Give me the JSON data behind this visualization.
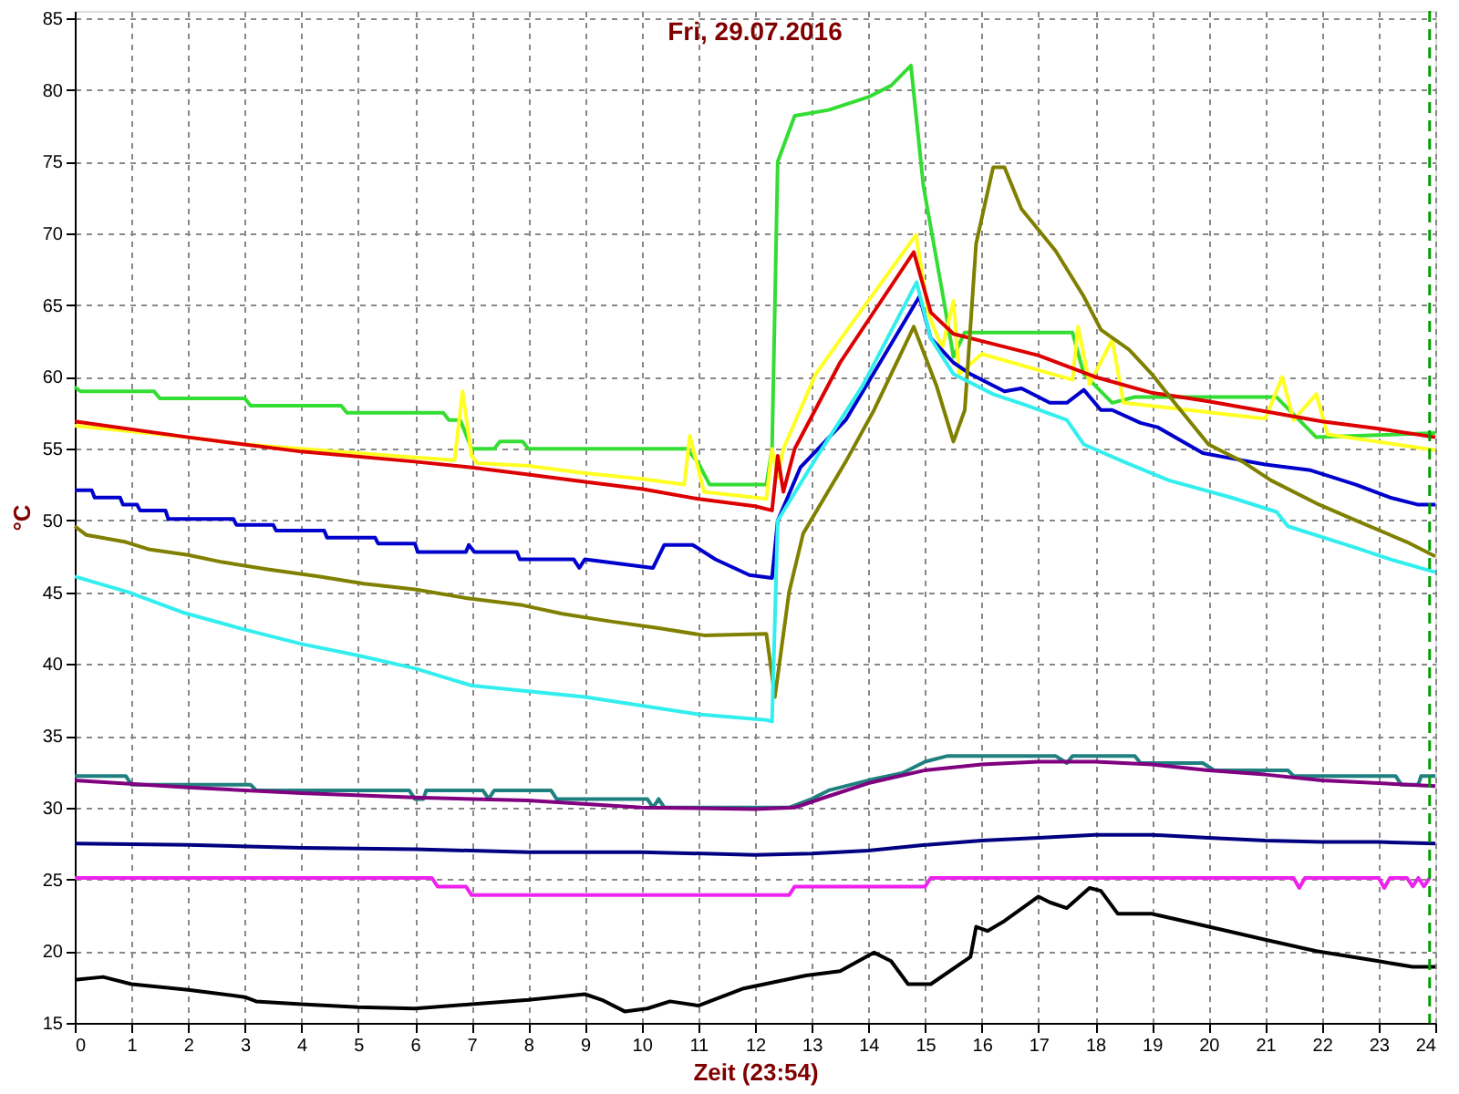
{
  "chart_data": {
    "type": "line",
    "title": "Fri, 29.07.2016",
    "xlabel": "Zeit (23:54)",
    "ylabel": "°C",
    "xlim": [
      0,
      24
    ],
    "xticks": [
      0,
      1,
      2,
      3,
      4,
      5,
      6,
      7,
      8,
      9,
      10,
      11,
      12,
      13,
      14,
      15,
      16,
      17,
      18,
      19,
      20,
      21,
      22,
      23,
      24
    ],
    "ylim": [
      15,
      85.5
    ],
    "yticks": [
      15,
      20,
      25,
      30,
      35,
      40,
      45,
      50,
      55,
      60,
      65,
      70,
      75,
      80,
      85
    ],
    "grid": true,
    "marker": "none",
    "line_style": "solid",
    "ref_lines": [
      {
        "axis": "x",
        "value": 23.9,
        "color": "#00a000",
        "line_style": "dashed"
      }
    ],
    "series": [
      {
        "color": "#33dd33",
        "x": [
          0,
          0.1,
          1.4,
          1.5,
          3,
          3.1,
          4.7,
          4.8,
          6.5,
          6.6,
          6.8,
          7,
          7.4,
          7.5,
          7.9,
          8,
          10.8,
          11,
          11.2,
          12.2,
          12.3,
          12.4,
          12.7,
          13.3,
          14,
          14.4,
          14.75,
          14.97,
          15.3,
          15.5,
          15.7,
          16,
          17.6,
          17.8,
          18.3,
          18.7,
          21.2,
          21.9,
          24
        ],
        "values": [
          59.3,
          59,
          59,
          58.5,
          58.5,
          58,
          58,
          57.5,
          57.5,
          57,
          57,
          55,
          55,
          55.5,
          55.5,
          55,
          55,
          54,
          52.5,
          52.5,
          55,
          75,
          78.2,
          78.6,
          79.5,
          80.3,
          81.7,
          73.3,
          66,
          61.4,
          63.1,
          63.1,
          63.1,
          60.2,
          58.2,
          58.6,
          58.6,
          55.8,
          56.1
        ]
      },
      {
        "color": "#ffff22",
        "x": [
          0,
          1,
          2,
          3,
          4,
          5,
          6,
          6.7,
          6.84,
          7,
          7.1,
          8,
          9,
          10,
          10.75,
          10.85,
          11.1,
          12,
          12.2,
          12.3,
          12.4,
          12.5,
          13.07,
          13.5,
          14.84,
          15.06,
          15.3,
          15.5,
          15.6,
          16,
          17.6,
          17.7,
          17.9,
          18.3,
          18.5,
          21,
          21.3,
          21.5,
          21.9,
          22.1,
          24
        ],
        "values": [
          56.6,
          56.2,
          55.8,
          55.3,
          55,
          54.7,
          54.4,
          54.2,
          59,
          54.5,
          54,
          53.8,
          53.3,
          52.9,
          52.5,
          55.9,
          52,
          51.6,
          51.5,
          55,
          53,
          55,
          60.2,
          62.6,
          69.9,
          64.4,
          62,
          65.3,
          60.2,
          61.6,
          59.8,
          63.5,
          59.5,
          62.6,
          58.2,
          57.1,
          60,
          57,
          58.8,
          56,
          54.9
        ]
      },
      {
        "color": "#dd0000",
        "x": [
          0,
          2,
          4,
          6,
          7,
          8,
          9,
          10,
          11,
          12,
          12.3,
          12.4,
          12.5,
          12.7,
          13.5,
          14.8,
          15.1,
          15.5,
          16,
          17,
          18,
          19,
          20,
          21,
          22,
          23,
          24
        ],
        "values": [
          56.9,
          55.8,
          54.8,
          54.1,
          53.7,
          53.2,
          52.7,
          52.2,
          51.5,
          51,
          50.7,
          54.5,
          52,
          55,
          61,
          68.7,
          64.5,
          63,
          62.5,
          61.5,
          60,
          58.9,
          58.3,
          57.6,
          56.9,
          56.4,
          55.8
        ]
      },
      {
        "color": "#0000cc",
        "x": [
          0,
          0.3,
          0.35,
          0.8,
          0.85,
          1.1,
          1.15,
          1.6,
          1.65,
          2.8,
          2.85,
          3.5,
          3.55,
          4.4,
          4.45,
          5.3,
          5.35,
          6,
          6.05,
          6.9,
          6.95,
          7.05,
          7.8,
          7.85,
          8.8,
          8.9,
          9,
          10.2,
          10.4,
          10.9,
          11.3,
          11.9,
          12.3,
          12.4,
          12.8,
          13.6,
          14.9,
          15.1,
          15.5,
          15.8,
          16.4,
          16.7,
          17.2,
          17.5,
          17.8,
          18.1,
          18.3,
          18.8,
          19.1,
          19.9,
          20.3,
          21,
          21.8,
          22.6,
          23.2,
          23.7,
          24
        ],
        "values": [
          52.1,
          52.1,
          51.6,
          51.6,
          51.1,
          51.1,
          50.7,
          50.7,
          50.1,
          50.1,
          49.7,
          49.7,
          49.3,
          49.3,
          48.8,
          48.8,
          48.4,
          48.4,
          47.8,
          47.8,
          48.3,
          47.8,
          47.8,
          47.3,
          47.3,
          46.7,
          47.3,
          46.7,
          48.3,
          48.3,
          47.3,
          46.2,
          46,
          50,
          53.7,
          57,
          65.6,
          62.7,
          61,
          60.2,
          59,
          59.2,
          58.2,
          58.2,
          59.1,
          57.7,
          57.7,
          56.8,
          56.5,
          54.7,
          54.4,
          53.9,
          53.5,
          52.5,
          51.6,
          51.1,
          51.1
        ]
      },
      {
        "color": "#808000",
        "x": [
          0,
          0.2,
          0.9,
          1.3,
          2,
          2.6,
          3.4,
          4.3,
          5.1,
          6,
          6.9,
          7.9,
          8.6,
          9.4,
          10.3,
          11.1,
          12.2,
          12.35,
          12.6,
          12.85,
          13.6,
          14.1,
          14.8,
          15.2,
          15.5,
          15.7,
          15.9,
          16.2,
          16.4,
          16.7,
          17.3,
          17.8,
          18.1,
          18.6,
          19,
          19.4,
          20,
          20.6,
          21.1,
          21.9,
          22.6,
          23.5,
          24
        ],
        "values": [
          49.6,
          49,
          48.5,
          48,
          47.6,
          47.1,
          46.6,
          46.1,
          45.6,
          45.2,
          44.6,
          44.1,
          43.5,
          43,
          42.5,
          42,
          42.1,
          37.7,
          45,
          49.1,
          54.1,
          57.7,
          63.5,
          59.4,
          55.5,
          57.7,
          69.3,
          74.6,
          74.6,
          71.7,
          68.8,
          65.6,
          63.3,
          61.9,
          60.2,
          58.2,
          55.3,
          54.1,
          52.8,
          51.2,
          50,
          48.5,
          47.5
        ]
      },
      {
        "color": "#33eeee",
        "x": [
          0,
          0.95,
          1.9,
          3,
          4,
          5,
          6,
          7,
          8,
          9,
          10,
          11,
          12.2,
          12.3,
          12.4,
          13.1,
          13.9,
          14.85,
          15.1,
          15.5,
          16.2,
          16.8,
          17.5,
          17.8,
          18.5,
          19.3,
          20.4,
          21.2,
          21.4,
          22.6,
          23.2,
          24
        ],
        "values": [
          46.1,
          45,
          43.6,
          42.4,
          41.4,
          40.6,
          39.7,
          38.5,
          38.1,
          37.7,
          37.1,
          36.5,
          36.1,
          36,
          50,
          54.5,
          59.4,
          66.6,
          62.7,
          60.2,
          58.8,
          58,
          57,
          55.3,
          54.1,
          52.8,
          51.6,
          50.6,
          49.6,
          48.1,
          47.3,
          46.4
        ]
      },
      {
        "color": "#208080",
        "x": [
          0,
          0.9,
          1,
          3.1,
          3.2,
          5.9,
          6,
          6.15,
          6.2,
          7.2,
          7.3,
          7.4,
          8.4,
          8.5,
          10.1,
          10.2,
          10.3,
          10.4,
          12.6,
          13,
          13.3,
          13.7,
          14.1,
          14.6,
          15,
          15.4,
          17.3,
          17.5,
          17.6,
          18.7,
          18.8,
          19.9,
          20.1,
          21.4,
          21.5,
          23.3,
          23.4,
          23.7,
          23.75,
          24
        ],
        "values": [
          32.2,
          32.2,
          31.6,
          31.6,
          31.2,
          31.2,
          30.6,
          30.6,
          31.2,
          31.2,
          30.6,
          31.2,
          31.2,
          30.6,
          30.6,
          30,
          30.6,
          30,
          30,
          30.6,
          31.2,
          31.6,
          32,
          32.4,
          33.2,
          33.6,
          33.6,
          33.1,
          33.6,
          33.6,
          33.1,
          33.1,
          32.6,
          32.6,
          32.2,
          32.2,
          31.6,
          31.6,
          32.2,
          32.2
        ]
      },
      {
        "color": "#800080",
        "x": [
          0,
          2,
          4,
          6,
          8,
          10,
          12,
          12.7,
          13.3,
          14,
          15,
          16,
          17,
          18,
          19,
          20,
          21,
          22,
          23,
          24
        ],
        "values": [
          31.9,
          31.4,
          31,
          30.7,
          30.5,
          30,
          29.9,
          30,
          30.8,
          31.7,
          32.6,
          33,
          33.2,
          33.2,
          33,
          32.6,
          32.3,
          31.9,
          31.7,
          31.5
        ]
      },
      {
        "color": "#000080",
        "x": [
          0,
          2,
          4,
          6,
          8,
          10,
          12,
          13,
          14,
          15,
          16,
          17,
          18,
          19,
          20,
          21,
          22,
          23,
          24
        ],
        "values": [
          27.5,
          27.4,
          27.2,
          27.1,
          26.9,
          26.9,
          26.7,
          26.8,
          27,
          27.4,
          27.7,
          27.9,
          28.1,
          28.1,
          27.9,
          27.7,
          27.6,
          27.6,
          27.5
        ]
      },
      {
        "color": "#ee22ee",
        "x": [
          0,
          6.3,
          6.4,
          6.9,
          7,
          12.6,
          12.7,
          15,
          15.1,
          21.5,
          21.6,
          21.7,
          23,
          23.1,
          23.2,
          23.5,
          23.6,
          23.7,
          23.8,
          23.9
        ],
        "values": [
          25.1,
          25.1,
          24.5,
          24.5,
          23.9,
          23.9,
          24.5,
          24.5,
          25.1,
          25.1,
          24.4,
          25.1,
          25.1,
          24.4,
          25.1,
          25.1,
          24.5,
          25.1,
          24.5,
          25.1
        ]
      },
      {
        "color": "#000000",
        "x": [
          0,
          0.5,
          1,
          2,
          3,
          3.2,
          4,
          5,
          6,
          7,
          8,
          9,
          9.3,
          9.7,
          10.1,
          10.5,
          11,
          11.8,
          12.9,
          13.5,
          14.1,
          14.4,
          14.7,
          15.1,
          15.8,
          15.9,
          16.1,
          16.4,
          17,
          17.2,
          17.5,
          17.9,
          18.1,
          18.4,
          19,
          19.9,
          21,
          21.9,
          23,
          23.6,
          24
        ],
        "values": [
          18,
          18.2,
          17.7,
          17.3,
          16.8,
          16.5,
          16.3,
          16.1,
          16,
          16.3,
          16.6,
          17,
          16.6,
          15.8,
          16,
          16.5,
          16.2,
          17.4,
          18.3,
          18.6,
          19.9,
          19.3,
          17.7,
          17.7,
          19.6,
          21.7,
          21.4,
          22.1,
          23.8,
          23.4,
          23,
          24.4,
          24.2,
          22.6,
          22.6,
          21.8,
          20.8,
          20,
          19.3,
          18.9,
          18.9
        ]
      }
    ]
  }
}
